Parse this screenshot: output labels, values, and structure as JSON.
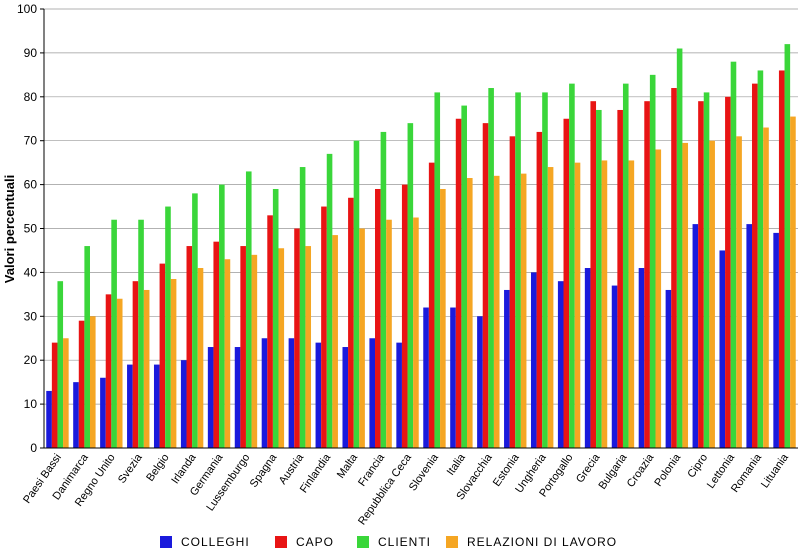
{
  "chart_data": {
    "type": "bar",
    "ylabel": "Valori percentuali",
    "xlabel": "",
    "ylim": [
      0,
      100
    ],
    "yticks": [
      0,
      10,
      20,
      30,
      40,
      50,
      60,
      70,
      80,
      90,
      100
    ],
    "grid": true,
    "legend_position": "bottom",
    "categories": [
      "Paesi Bassi",
      "Danimarca",
      "Regno Unito",
      "Svezia",
      "Belgio",
      "Irlanda",
      "Germania",
      "Lussemburgo",
      "Spagna",
      "Austria",
      "Finlandia",
      "Malta",
      "Francia",
      "Repubblica Ceca",
      "Slovenia",
      "Italia",
      "Slovacchia",
      "Estonia",
      "Ungheria",
      "Portogallo",
      "Grecia",
      "Bulgaria",
      "Croazia",
      "Polonia",
      "Cipro",
      "Lettonia",
      "Romania",
      "Lituania"
    ],
    "series": [
      {
        "name": "COLLEGHI",
        "color": "#1a1adc",
        "values": [
          13,
          15,
          16,
          19,
          19,
          20,
          23,
          23,
          25,
          25,
          24,
          23,
          25,
          24,
          32,
          32,
          30,
          36,
          40,
          38,
          41,
          37,
          41,
          36,
          51,
          45,
          51,
          49
        ]
      },
      {
        "name": "CAPO",
        "color": "#e81414",
        "values": [
          24,
          29,
          35,
          38,
          42,
          46,
          47,
          46,
          53,
          50,
          55,
          57,
          59,
          60,
          65,
          75,
          74,
          71,
          72,
          75,
          79,
          77,
          79,
          82,
          79,
          80,
          83,
          86
        ]
      },
      {
        "name": "CLIENTI",
        "color": "#3ad63a",
        "values": [
          38,
          46,
          52,
          52,
          55,
          58,
          60,
          63,
          59,
          64,
          67,
          70,
          72,
          74,
          81,
          78,
          82,
          81,
          81,
          83,
          77,
          83,
          85,
          91,
          81,
          88,
          86,
          92
        ]
      },
      {
        "name": "RELAZIONI DI LAVORO",
        "color": "#f5a623",
        "values": [
          25,
          30,
          34,
          36,
          38.5,
          41,
          43,
          44,
          45.5,
          46,
          48.5,
          50,
          52,
          52.5,
          59,
          61.5,
          62,
          62.5,
          64,
          65,
          65.5,
          65.5,
          68,
          69.5,
          70,
          71,
          73,
          75.5
        ]
      }
    ]
  }
}
